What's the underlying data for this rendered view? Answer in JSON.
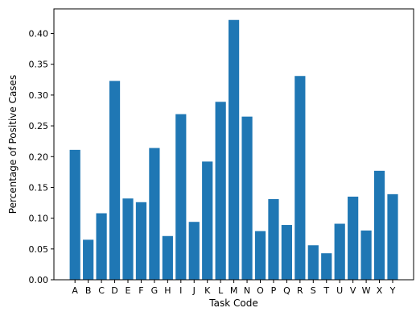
{
  "chart_data": {
    "type": "bar",
    "title": "",
    "xlabel": "Task Code",
    "ylabel": "Percentage of Positive Cases",
    "categories": [
      "A",
      "B",
      "C",
      "D",
      "E",
      "F",
      "G",
      "H",
      "I",
      "J",
      "K",
      "L",
      "M",
      "N",
      "O",
      "P",
      "Q",
      "R",
      "S",
      "T",
      "U",
      "V",
      "W",
      "X",
      "Y"
    ],
    "values": [
      0.211,
      0.065,
      0.108,
      0.323,
      0.132,
      0.126,
      0.214,
      0.071,
      0.269,
      0.094,
      0.192,
      0.289,
      0.422,
      0.265,
      0.079,
      0.131,
      0.089,
      0.331,
      0.056,
      0.043,
      0.091,
      0.135,
      0.08,
      0.177,
      0.139
    ],
    "ylim": [
      0,
      0.44
    ],
    "yticks": [
      "0.00",
      "0.05",
      "0.10",
      "0.15",
      "0.20",
      "0.25",
      "0.30",
      "0.35",
      "0.40"
    ],
    "bar_color": "#1f77b4",
    "grid": false
  }
}
